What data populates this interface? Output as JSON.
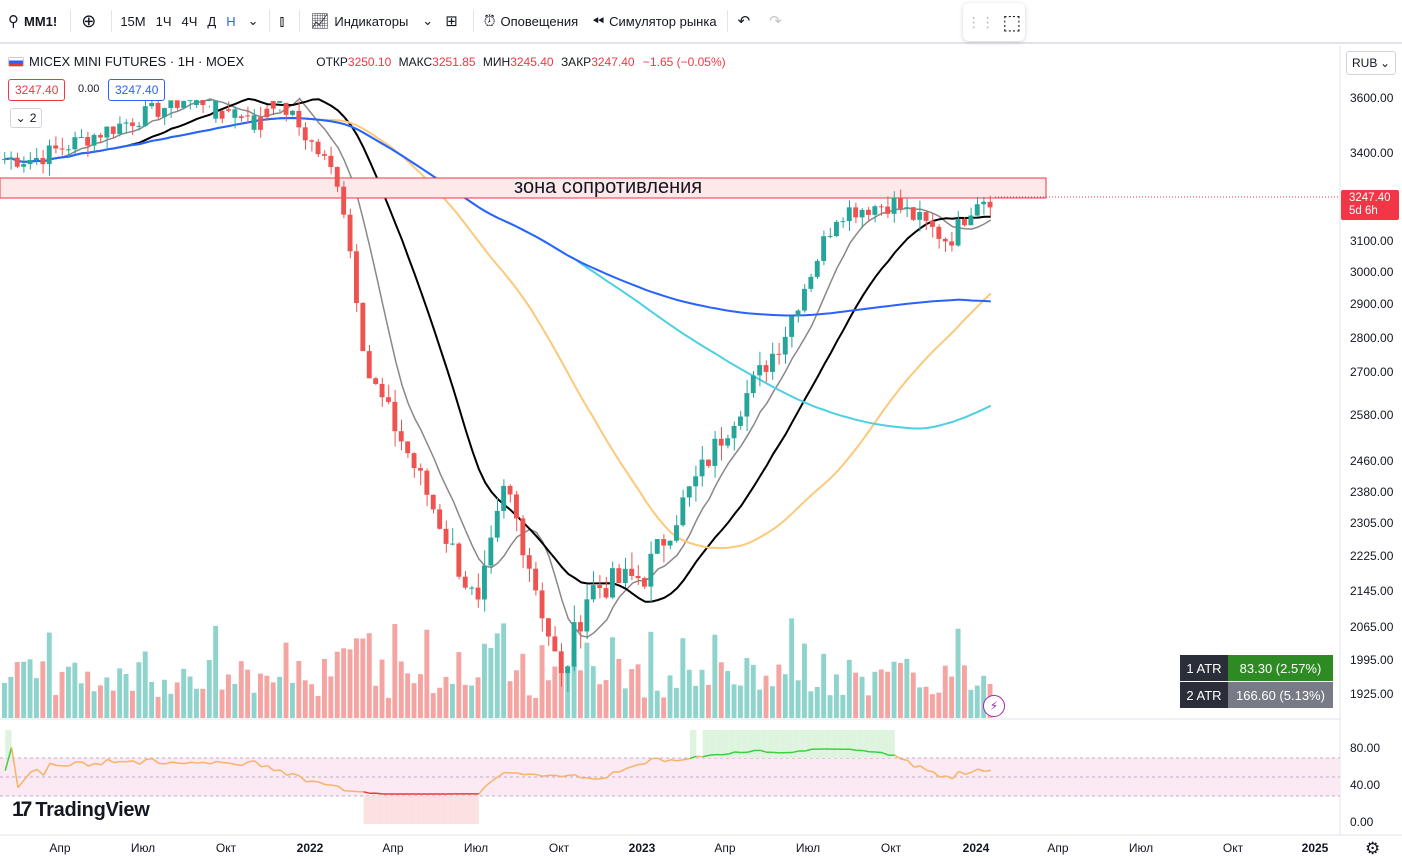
{
  "toolbar": {
    "symbol": "MM1!",
    "intervals": [
      "15М",
      "1Ч",
      "4Ч",
      "Д",
      "Н"
    ],
    "active_interval": "Н",
    "indicators_label": "Индикаторы",
    "alerts_label": "Оповещения",
    "replay_label": "Симулятор рынка"
  },
  "legend": {
    "title": "MICEX MINI FUTURES · 1Н · MOEX",
    "open_label": "ОТКР",
    "open": "3250.10",
    "high_label": "МАКС",
    "high": "3251.85",
    "low_label": "МИН",
    "low": "3245.40",
    "close_label": "ЗАКР",
    "close": "3247.40",
    "change": "−1.65 (−0.05%)",
    "sell_price": "3247.40",
    "spread": "0.00",
    "buy_price": "3247.40",
    "collapse_count": "2"
  },
  "price_axis": {
    "currency": "RUB",
    "ticks": [
      "3600.00",
      "3400.00",
      "3100.00",
      "3000.00",
      "2900.00",
      "2800.00",
      "2700.00",
      "2580.00",
      "2460.00",
      "2380.00",
      "2305.00",
      "2225.00",
      "2145.00",
      "2065.00",
      "1995.00",
      "1925.00"
    ],
    "last_price": "3247.40",
    "countdown": "5d 6h"
  },
  "osc_axis": {
    "ticks": [
      "80.00",
      "40.00",
      "0.00"
    ]
  },
  "time_axis": {
    "labels": [
      "Апр",
      "Июл",
      "Окт",
      "2022",
      "Апр",
      "Июл",
      "Окт",
      "2023",
      "Апр",
      "Июл",
      "Окт",
      "2024",
      "Апр",
      "Июл",
      "Окт",
      "2025"
    ]
  },
  "annotation": {
    "zone_label": "зона сопротивления"
  },
  "atr": [
    {
      "name": "1 ATR",
      "value": "83.30 (2.57%)",
      "color": "#2e8b23"
    },
    {
      "name": "2 ATR",
      "value": "166.60 (5.13%)",
      "color": "#787b86"
    }
  ],
  "brand": {
    "logo_text": "TradingView"
  },
  "colors": {
    "up": "#26a69a",
    "down": "#ef5350",
    "ma_black": "#000000",
    "ma_gray": "#888888",
    "ma_orange": "#fcc97a",
    "ma_cyan": "#4dd0e1",
    "ma_blue": "#2962ff",
    "zone_fill": "#fde8ea",
    "zone_stroke": "#f23645"
  },
  "chart_data": {
    "type": "candlestick",
    "symbol": "MM1!",
    "interval": "1Н",
    "price_range": [
      1925,
      3600
    ],
    "resistance_zone": [
      3240,
      3295
    ],
    "series_anchors": [
      {
        "date": "2021-03",
        "close": 3380
      },
      {
        "date": "2021-11",
        "close": 3700
      },
      {
        "date": "2022-02",
        "close": 3300
      },
      {
        "date": "2022-03",
        "close": 2700
      },
      {
        "date": "2022-05",
        "close": 2400
      },
      {
        "date": "2022-07",
        "close": 2100
      },
      {
        "date": "2022-08",
        "close": 2400
      },
      {
        "date": "2022-10",
        "close": 1950
      },
      {
        "date": "2022-11",
        "close": 2150
      },
      {
        "date": "2023-01",
        "close": 2180
      },
      {
        "date": "2023-04",
        "close": 2550
      },
      {
        "date": "2023-06",
        "close": 2800
      },
      {
        "date": "2023-08",
        "close": 3200
      },
      {
        "date": "2023-10",
        "close": 3230
      },
      {
        "date": "2023-12",
        "close": 3100
      },
      {
        "date": "2024-01",
        "close": 3247.4
      }
    ]
  }
}
